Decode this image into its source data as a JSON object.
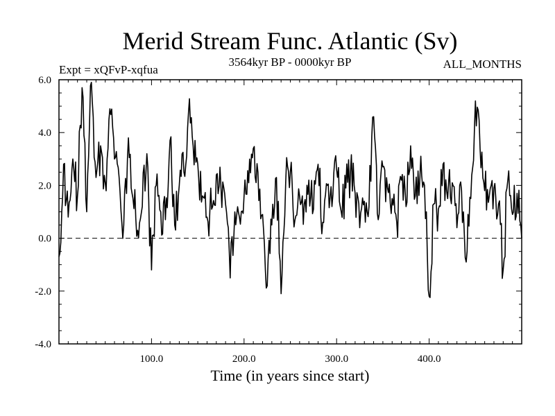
{
  "chart_data": {
    "type": "line",
    "title": "Merid Stream Func. Atlantic (Sv)",
    "experiment": "Expt = xQFvP-xqfua",
    "period": "3564kyr BP - 0000kyr BP",
    "months": "ALL_MONTHS",
    "xlabel": "Time (in years since start)",
    "ylabel": "",
    "xlim": [
      0,
      500
    ],
    "ylim": [
      -4,
      6
    ],
    "xticks": [
      100,
      200,
      300,
      400
    ],
    "xtick_labels": [
      "100.0",
      "200.0",
      "300.0",
      "400.0"
    ],
    "yticks": [
      6,
      4,
      2,
      0,
      -2,
      -4
    ],
    "ytick_labels": [
      "6.0",
      "4.0",
      "2.0",
      "0.0",
      "-2.0",
      "-4.0"
    ],
    "reference_line_y": 0,
    "series": [
      {
        "name": "Merid Stream Func. Atlantic",
        "x": [
          0,
          5,
          10,
          15,
          20,
          25,
          30,
          35,
          40,
          45,
          50,
          55,
          60,
          65,
          70,
          75,
          80,
          85,
          90,
          95,
          100,
          105,
          110,
          115,
          120,
          125,
          130,
          135,
          140,
          145,
          150,
          155,
          160,
          165,
          170,
          175,
          180,
          185,
          190,
          195,
          200,
          205,
          210,
          215,
          220,
          225,
          230,
          235,
          240,
          245,
          250,
          255,
          260,
          265,
          270,
          275,
          280,
          285,
          290,
          295,
          300,
          305,
          310,
          315,
          320,
          325,
          330,
          335,
          340,
          345,
          350,
          355,
          360,
          365,
          370,
          375,
          380,
          385,
          390,
          395,
          400,
          405,
          410,
          415,
          420,
          425,
          430,
          435,
          440,
          445,
          450,
          455,
          460,
          465,
          470,
          475,
          480,
          485,
          490,
          495,
          500
        ],
        "values": [
          -0.7,
          2.8,
          0.8,
          3.0,
          1.6,
          5.7,
          1.0,
          5.9,
          2.3,
          3.5,
          2.1,
          4.9,
          3.0,
          2.3,
          0.5,
          3.8,
          1.5,
          0.3,
          1.2,
          3.2,
          -1.2,
          2.0,
          1.0,
          0.7,
          3.7,
          0.5,
          2.0,
          2.5,
          4.8,
          3.5,
          2.8,
          1.6,
          0.8,
          1.1,
          2.4,
          2.0,
          1.3,
          -1.5,
          1.0,
          0.8,
          1.6,
          2.1,
          3.4,
          2.5,
          0.9,
          -1.8,
          0.5,
          2.3,
          -2.1,
          2.1,
          2.5,
          0.7,
          1.6,
          1.3,
          2.2,
          1.1,
          2.8,
          0.6,
          2.0,
          1.2,
          2.6,
          1.0,
          1.9,
          2.5,
          1.7,
          0.4,
          1.4,
          1.2,
          4.6,
          0.7,
          2.7,
          1.9,
          1.5,
          0.6,
          2.2,
          1.2,
          3.5,
          1.6,
          2.3,
          2.0,
          -2.2,
          1.3,
          1.1,
          2.8,
          1.5,
          2.1,
          0.4,
          1.8,
          -0.9,
          1.5,
          5.2,
          3.4,
          1.8,
          1.6,
          1.9,
          1.3,
          -1.2,
          2.2,
          0.9,
          1.7,
          0.0
        ]
      }
    ]
  }
}
